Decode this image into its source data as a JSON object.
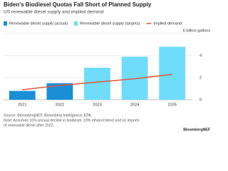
{
  "chart_data": {
    "type": "bar-line",
    "title": "Biden's Biodiesel Quotas Fall Short of Planned Supply",
    "subtitle": "US renewable diesel supply and implied demand",
    "categories": [
      "2021",
      "2022",
      "2023",
      "2024",
      "2025"
    ],
    "series": [
      {
        "name": "Renewable diesel supply (actual)",
        "color": "#1b8fd6",
        "kind": "bar",
        "values": [
          0.8,
          1.5,
          null,
          null,
          null
        ]
      },
      {
        "name": "Renewable diesel supply (targets)",
        "color": "#6fdcfb",
        "kind": "bar",
        "values": [
          null,
          null,
          2.9,
          3.9,
          4.8
        ]
      },
      {
        "name": "Implied demand",
        "color": "#e0553d",
        "kind": "line",
        "values": [
          0.9,
          1.3,
          1.6,
          1.9,
          2.3
        ]
      }
    ],
    "ylim": [
      0,
      6
    ],
    "yticks": [
      0,
      2,
      4,
      {
        "value": 6,
        "label": "6 billion gallons"
      }
    ],
    "grid": true,
    "source": "Source: BloombergNEF, Bloomberg Intelligence, EPA.",
    "note": [
      "Note: Assumes 10% annual decline in biodiesel, 10% ethanol blend and no imports",
      "of renewable diesel after 2022."
    ],
    "brand": "BloombergNEF"
  }
}
